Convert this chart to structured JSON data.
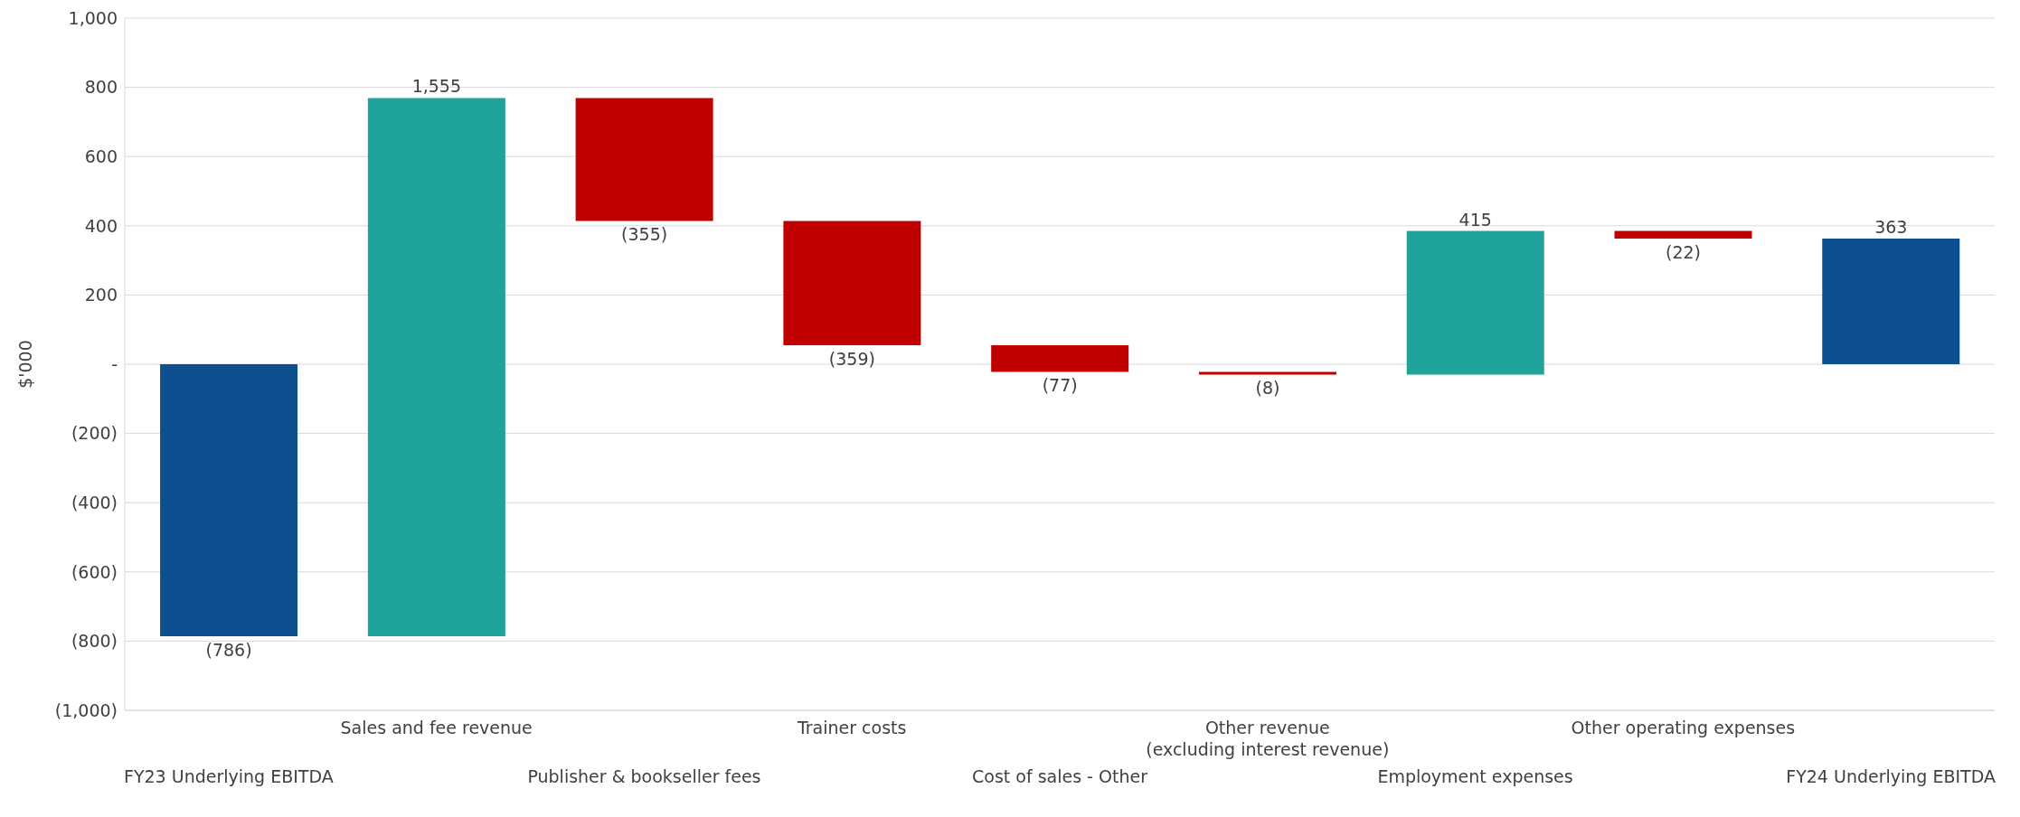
{
  "chart_data": {
    "type": "bar",
    "ylabel": "$'000",
    "categories": [
      "FY23 Underlying EBITDA",
      "Sales and fee revenue",
      "Publisher & bookseller fees",
      "Trainer costs",
      "Cost of sales - Other",
      "Other revenue\n(excluding interest revenue)",
      "Employment expenses",
      "Other operating expenses",
      "FY24 Underlying EBITDA"
    ],
    "values": [
      -786,
      1555,
      -355,
      -359,
      -77,
      -8,
      415,
      -22,
      363
    ],
    "base": [
      0,
      -786,
      769,
      414,
      55,
      -22,
      -30,
      385,
      0
    ],
    "colors": [
      "#0e4f8f",
      "#1fa39b",
      "#c00000",
      "#c00000",
      "#c00000",
      "#c00000",
      "#1fa39b",
      "#c00000",
      "#0e4f8f"
    ],
    "value_labels": [
      "(786)",
      "1,555",
      "(355)",
      "(359)",
      "(77)",
      "(8)",
      "415",
      "(22)",
      "363"
    ],
    "ylim": [
      -1000,
      1000
    ],
    "yticks": [
      {
        "value": -1000,
        "label": "(1,000)"
      },
      {
        "value": -800,
        "label": "(800)"
      },
      {
        "value": -600,
        "label": "(600)"
      },
      {
        "value": -400,
        "label": "(400)"
      },
      {
        "value": -200,
        "label": "(200)"
      },
      {
        "value": 0,
        "label": "-"
      },
      {
        "value": 200,
        "label": "200"
      },
      {
        "value": 400,
        "label": "400"
      },
      {
        "value": 600,
        "label": "600"
      },
      {
        "value": 800,
        "label": "800"
      },
      {
        "value": 1000,
        "label": "1,000"
      }
    ],
    "grid": "y",
    "legend": false
  }
}
